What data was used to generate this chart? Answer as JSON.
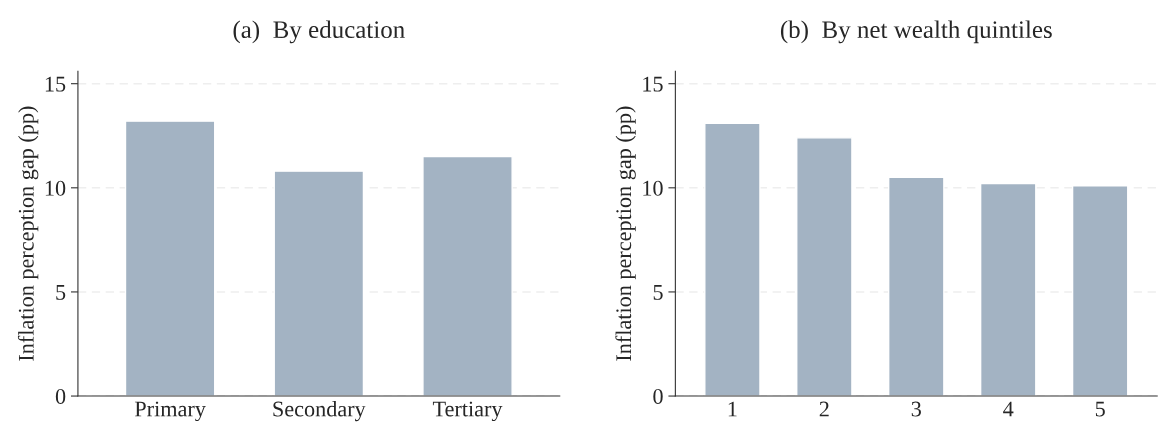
{
  "chart_data": [
    {
      "type": "bar",
      "title": "(a)  By education",
      "ylabel": "Inflation perception gap (pp)",
      "categories": [
        "Primary",
        "Secondary",
        "Tertiary"
      ],
      "values": [
        13.2,
        10.8,
        11.5
      ],
      "color": "#a3b3c3",
      "ylim": [
        0,
        15.6
      ],
      "yticks": [
        0,
        5,
        10,
        15
      ],
      "grid": "y"
    },
    {
      "type": "bar",
      "title": "(b)  By net wealth quintiles",
      "ylabel": "Inflation perception gap (pp)",
      "categories": [
        "1",
        "2",
        "3",
        "4",
        "5"
      ],
      "values": [
        13.1,
        12.4,
        10.5,
        10.2,
        10.1
      ],
      "color": "#a3b3c3",
      "ylim": [
        0,
        15.6
      ],
      "yticks": [
        0,
        5,
        10,
        15
      ],
      "grid": "y"
    }
  ]
}
